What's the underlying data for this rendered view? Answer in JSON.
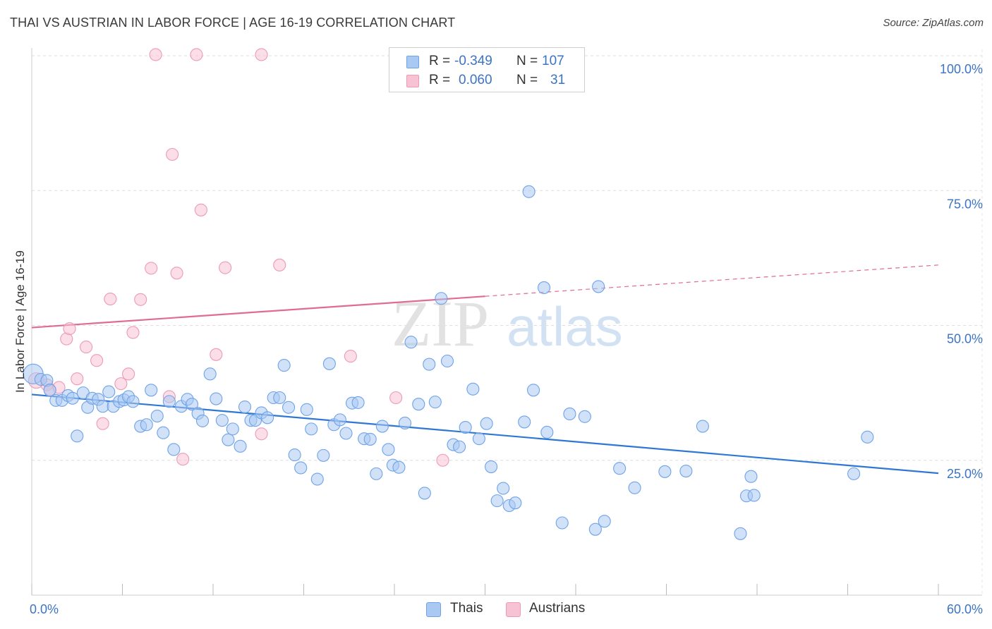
{
  "title": "THAI VS AUSTRIAN IN LABOR FORCE | AGE 16-19 CORRELATION CHART",
  "source": "Source: ZipAtlas.com",
  "watermark": {
    "zip": "ZIP",
    "atlas": "atlas"
  },
  "legend": {
    "rows": [
      {
        "r_label": "R =",
        "r_value": "-0.349",
        "n_label": "N =",
        "n_value": "107",
        "color": "#6fa3e8"
      },
      {
        "r_label": "R =",
        "r_value": "0.060",
        "n_label": "N =",
        "n_value": "31",
        "color": "#f0a0bb"
      }
    ]
  },
  "bottom_legend": [
    {
      "label": "Thais",
      "color": "#6fa3e8"
    },
    {
      "label": "Austrians",
      "color": "#f0a0bb"
    }
  ],
  "colors": {
    "thais_fill": "#a9c8f2",
    "thais_stroke": "#6fa3e8",
    "thais_line": "#2f77d4",
    "austrians_fill": "#f7c2d3",
    "austrians_stroke": "#ec9ab5",
    "austrians_line": "#e06b93",
    "tick_text": "#3b74c4"
  },
  "chart_data": {
    "type": "scatter",
    "xlabel": "",
    "ylabel": "In Labor Force | Age 16-19",
    "xlim": [
      0,
      60
    ],
    "ylim": [
      0,
      105
    ],
    "x_tick_labels": [
      {
        "value": 0,
        "label": "0.0%"
      },
      {
        "value": 60,
        "label": "60.0%"
      }
    ],
    "y_tick_labels": [
      {
        "value": 25,
        "label": "25.0%"
      },
      {
        "value": 50,
        "label": "50.0%"
      },
      {
        "value": 75,
        "label": "75.0%"
      },
      {
        "value": 100,
        "label": "100.0%"
      }
    ],
    "grid": true,
    "legend_position": "top-center",
    "series": [
      {
        "name": "Thais",
        "r": -0.349,
        "n": 107,
        "trend": {
          "x": [
            0,
            60
          ],
          "y": [
            37.2,
            22.6
          ]
        },
        "points": [
          [
            0.1,
            41
          ],
          [
            0.6,
            40
          ],
          [
            1.0,
            39.8
          ],
          [
            1.2,
            38
          ],
          [
            1.6,
            36.1
          ],
          [
            2.0,
            36.1
          ],
          [
            2.4,
            37
          ],
          [
            2.7,
            36.5
          ],
          [
            3.0,
            29.5
          ],
          [
            3.4,
            37.5
          ],
          [
            3.7,
            34.8
          ],
          [
            4.0,
            36.5
          ],
          [
            4.4,
            36.3
          ],
          [
            4.7,
            35
          ],
          [
            5.1,
            37.7
          ],
          [
            5.4,
            35
          ],
          [
            5.8,
            35.9
          ],
          [
            6.1,
            36.2
          ],
          [
            6.4,
            36.8
          ],
          [
            6.7,
            35.9
          ],
          [
            7.2,
            31.3
          ],
          [
            7.6,
            31.6
          ],
          [
            7.9,
            38
          ],
          [
            8.3,
            33.2
          ],
          [
            8.7,
            30.1
          ],
          [
            9.1,
            35.9
          ],
          [
            9.4,
            27
          ],
          [
            9.9,
            35
          ],
          [
            10.3,
            36.3
          ],
          [
            10.6,
            35.4
          ],
          [
            11.0,
            33.7
          ],
          [
            11.3,
            32.3
          ],
          [
            11.8,
            41
          ],
          [
            12.2,
            36.4
          ],
          [
            12.6,
            32.4
          ],
          [
            13.0,
            28.8
          ],
          [
            13.3,
            30.8
          ],
          [
            13.8,
            27.6
          ],
          [
            14.1,
            34.9
          ],
          [
            14.5,
            32.4
          ],
          [
            14.8,
            32.4
          ],
          [
            15.2,
            33.8
          ],
          [
            15.6,
            32.9
          ],
          [
            16.0,
            36.6
          ],
          [
            16.4,
            36.6
          ],
          [
            16.7,
            42.6
          ],
          [
            17.0,
            34.8
          ],
          [
            17.4,
            26
          ],
          [
            17.8,
            23.6
          ],
          [
            18.2,
            34.4
          ],
          [
            18.5,
            30.8
          ],
          [
            18.9,
            21.5
          ],
          [
            19.3,
            25.9
          ],
          [
            19.7,
            42.9
          ],
          [
            20.0,
            31.6
          ],
          [
            20.4,
            32.5
          ],
          [
            20.8,
            30
          ],
          [
            21.2,
            35.6
          ],
          [
            21.6,
            35.7
          ],
          [
            22.0,
            29
          ],
          [
            22.4,
            28.9
          ],
          [
            22.8,
            22.5
          ],
          [
            23.2,
            31.3
          ],
          [
            23.6,
            27
          ],
          [
            23.9,
            24.1
          ],
          [
            24.3,
            23.7
          ],
          [
            24.7,
            31.9
          ],
          [
            25.1,
            46.9
          ],
          [
            25.6,
            35.4
          ],
          [
            26.0,
            18.9
          ],
          [
            26.3,
            42.8
          ],
          [
            26.7,
            35.8
          ],
          [
            27.1,
            55
          ],
          [
            27.5,
            43.4
          ],
          [
            27.9,
            27.9
          ],
          [
            28.3,
            27.5
          ],
          [
            28.7,
            31.1
          ],
          [
            29.2,
            38.2
          ],
          [
            29.6,
            29
          ],
          [
            30.1,
            31.8
          ],
          [
            30.4,
            23.8
          ],
          [
            30.8,
            17.5
          ],
          [
            31.2,
            19.8
          ],
          [
            31.6,
            16.6
          ],
          [
            32.0,
            17.1
          ],
          [
            32.6,
            32.1
          ],
          [
            32.9,
            74.8
          ],
          [
            33.2,
            38
          ],
          [
            33.9,
            57
          ],
          [
            34.1,
            30.2
          ],
          [
            35.1,
            13.4
          ],
          [
            35.6,
            33.6
          ],
          [
            36.6,
            33.1
          ],
          [
            37.3,
            12.2
          ],
          [
            37.5,
            57.2
          ],
          [
            37.9,
            13.7
          ],
          [
            38.9,
            23.5
          ],
          [
            39.9,
            19.9
          ],
          [
            41.9,
            22.9
          ],
          [
            43.3,
            23
          ],
          [
            44.4,
            31.3
          ],
          [
            46.9,
            11.4
          ],
          [
            47.3,
            18.4
          ],
          [
            47.6,
            22
          ],
          [
            47.8,
            18.5
          ],
          [
            54.4,
            22.5
          ],
          [
            55.3,
            29.3
          ]
        ]
      },
      {
        "name": "Austrians",
        "r": 0.06,
        "n": 31,
        "trend": {
          "x": [
            0,
            30
          ],
          "y": [
            49.6,
            55.4
          ]
        },
        "trend_dashed_extension": {
          "x": [
            30,
            60
          ],
          "y": [
            55.4,
            61.2
          ]
        },
        "points": [
          [
            0.3,
            39.8
          ],
          [
            1.0,
            39
          ],
          [
            1.2,
            38.1
          ],
          [
            1.8,
            38.5
          ],
          [
            2.3,
            47.5
          ],
          [
            2.5,
            49.4
          ],
          [
            3.0,
            40.1
          ],
          [
            3.6,
            46
          ],
          [
            4.3,
            43.5
          ],
          [
            4.7,
            31.8
          ],
          [
            5.2,
            54.9
          ],
          [
            5.9,
            39.2
          ],
          [
            6.4,
            41
          ],
          [
            6.7,
            48.7
          ],
          [
            7.2,
            54.8
          ],
          [
            7.9,
            60.6
          ],
          [
            8.2,
            100.2
          ],
          [
            9.1,
            36.8
          ],
          [
            9.3,
            81.7
          ],
          [
            9.6,
            59.7
          ],
          [
            10.0,
            25.2
          ],
          [
            10.9,
            100.2
          ],
          [
            11.2,
            71.4
          ],
          [
            12.2,
            44.6
          ],
          [
            12.8,
            60.7
          ],
          [
            15.2,
            100.2
          ],
          [
            15.2,
            29.9
          ],
          [
            16.4,
            61.2
          ],
          [
            21.1,
            44.3
          ],
          [
            24.1,
            36.6
          ],
          [
            27.2,
            25
          ]
        ]
      }
    ]
  }
}
